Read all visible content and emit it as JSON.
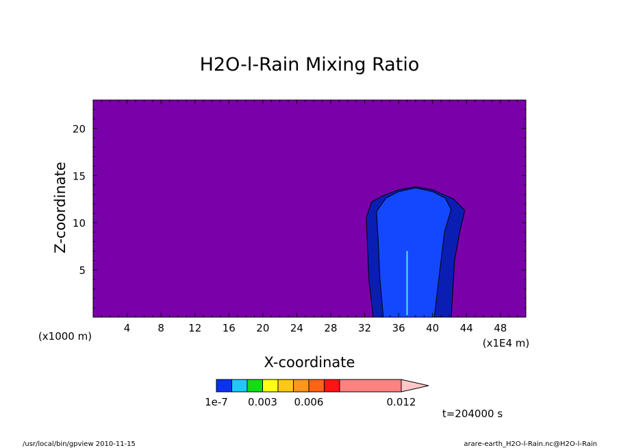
{
  "chart_data": {
    "type": "heatmap",
    "title": "H2O-l-Rain Mixing Ratio",
    "xlabel": "X-coordinate",
    "ylabel": "Z-coordinate",
    "x_unit": "(x1E4 m)",
    "y_unit": "(x1000 m)",
    "xlim": [
      0,
      51
    ],
    "ylim": [
      0,
      23
    ],
    "x_ticks": [
      4,
      8,
      12,
      16,
      20,
      24,
      28,
      32,
      36,
      40,
      44,
      48
    ],
    "y_ticks": [
      5,
      10,
      15,
      20
    ],
    "x_tick_labels": [
      "4",
      "8",
      "12",
      "16",
      "20",
      "24",
      "28",
      "32",
      "36",
      "40",
      "44",
      "48"
    ],
    "y_tick_labels": [
      "5",
      "10",
      "15",
      "20"
    ],
    "background_color": "#7a00aa",
    "regions": [
      {
        "level": "1e-7 outer",
        "color": "#0a1eb4",
        "outline": [
          [
            33.0,
            0
          ],
          [
            32.5,
            4
          ],
          [
            32.3,
            8
          ],
          [
            32.2,
            10.5
          ],
          [
            32.8,
            12.2
          ],
          [
            34,
            12.8
          ],
          [
            36,
            13.5
          ],
          [
            38,
            13.8
          ],
          [
            40,
            13.5
          ],
          [
            42.5,
            12.5
          ],
          [
            43.8,
            11.3
          ],
          [
            43.2,
            9
          ],
          [
            42.6,
            6
          ],
          [
            42.4,
            3
          ],
          [
            42.2,
            0
          ]
        ]
      },
      {
        "level": "1e-7 inner",
        "color": "#1448ff",
        "outline": [
          [
            34.2,
            0
          ],
          [
            33.8,
            4
          ],
          [
            33.6,
            8
          ],
          [
            33.4,
            11.2
          ],
          [
            34.5,
            12.6
          ],
          [
            36,
            13.3
          ],
          [
            38,
            13.7
          ],
          [
            40,
            13.3
          ],
          [
            41.5,
            12.6
          ],
          [
            42.2,
            11.4
          ],
          [
            41.4,
            9
          ],
          [
            41.0,
            6
          ],
          [
            40.6,
            3
          ],
          [
            40.2,
            0
          ]
        ]
      }
    ],
    "core": {
      "x": 37.0,
      "top": 7,
      "color": "#40f0f0"
    },
    "colorbar": {
      "colors": [
        "#0a32f0",
        "#1ec8ff",
        "#14dc14",
        "#ffff14",
        "#ffc814",
        "#ff961e",
        "#ff6414",
        "#ff1414",
        "#ff8282",
        "#ffc8c8"
      ],
      "labels": [
        "1e-7",
        "0.003",
        "0.006",
        "0.012"
      ]
    }
  },
  "annotations": {
    "time": "t=204000 s",
    "footer_left": "/usr/local/bin/gpview  2010-11-15",
    "footer_right": "arare-earth_H2O-l-Rain.nc@H2O-l-Rain"
  }
}
